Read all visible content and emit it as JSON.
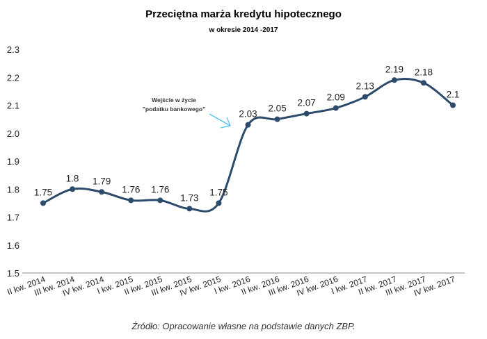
{
  "chart_data": {
    "type": "line",
    "title": "Przeciętna marża kredytu hipotecznego",
    "subtitle": "w okresie 2014 -2017",
    "xlabel": "",
    "ylabel": "",
    "categories": [
      "II kw. 2014",
      "III kw. 2014",
      "IV kw. 2014",
      "I kw. 2015",
      "II kw. 2015",
      "III kw. 2015",
      "IV kw. 2015",
      "I kw. 2016",
      "II kw. 2016",
      "III kw. 2016",
      "IV kw. 2016",
      "I kw. 2017",
      "II kw. 2017",
      "III kw. 2017",
      "IV kw. 2017"
    ],
    "series": [
      {
        "name": "Marża",
        "values": [
          1.75,
          1.8,
          1.79,
          1.76,
          1.76,
          1.73,
          1.75,
          2.03,
          2.05,
          2.07,
          2.09,
          2.13,
          2.19,
          2.18,
          2.1
        ],
        "labels": [
          "1.75",
          "1.8",
          "1.79",
          "1.76",
          "1.76",
          "1.73",
          "1.75",
          "2.03",
          "2.05",
          "2.07",
          "2.09",
          "2.13",
          "2.19",
          "2.18",
          "2.1"
        ]
      }
    ],
    "ylim": [
      1.5,
      2.3
    ],
    "yticks": [
      "1.5",
      "1.6",
      "1.7",
      "1.8",
      "1.9",
      "2.0",
      "2.1",
      "2.2",
      "2.3"
    ],
    "grid": false,
    "annotation": {
      "lines": [
        "Wejście w życie",
        "\"podatku bankowego\""
      ],
      "target_category": "I kw. 2016"
    },
    "colors": {
      "line": "#2c4a6b",
      "arrow": "#4fc3f0",
      "axis": "#888888"
    }
  },
  "source": "Źródło: Opracowanie własne na podstawie danych ZBP."
}
